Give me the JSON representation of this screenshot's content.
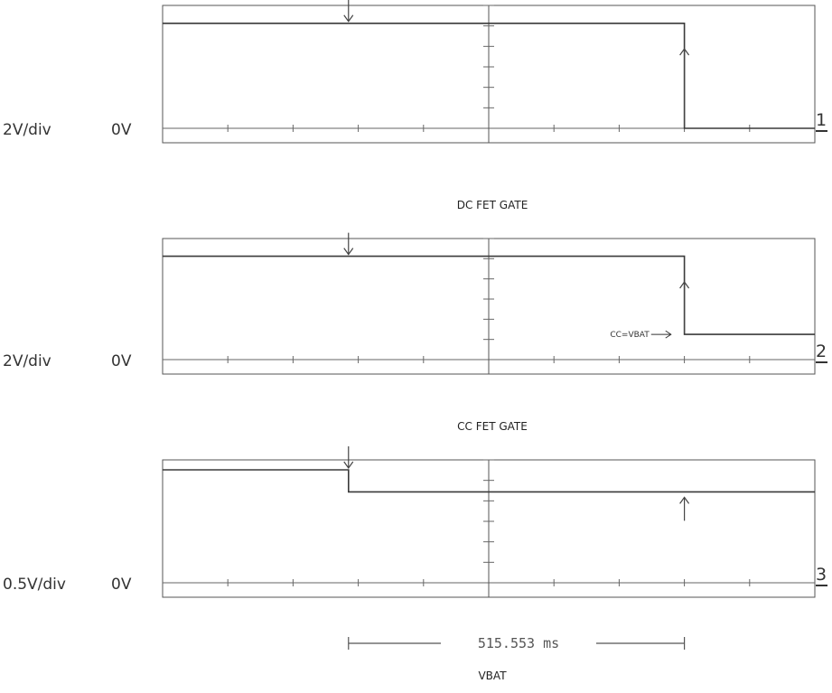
{
  "chart_data": [
    {
      "type": "line",
      "title": "DC FET GATE",
      "channel": "1",
      "scale_label": "2V/div",
      "offset_label": "0V",
      "x_unit": "div",
      "y_unit": "div",
      "xlim": [
        0,
        10
      ],
      "ylim": [
        0,
        8
      ],
      "grid": false,
      "series": [
        {
          "x": [
            0,
            8,
            8,
            10
          ],
          "y": [
            5.95,
            5.95,
            0,
            0
          ]
        }
      ],
      "markers": [
        {
          "x": 2.85,
          "direction": "down",
          "at": "trace"
        },
        {
          "x": 8,
          "direction": "up",
          "at": "trace"
        }
      ],
      "annotations": []
    },
    {
      "type": "line",
      "title": "CC FET GATE",
      "channel": "2",
      "scale_label": "2V/div",
      "offset_label": "0V",
      "x_unit": "div",
      "y_unit": "div",
      "xlim": [
        0,
        10
      ],
      "ylim": [
        0,
        8
      ],
      "grid": false,
      "series": [
        {
          "x": [
            0,
            8,
            8,
            10
          ],
          "y": [
            5.95,
            5.95,
            1.45,
            1.45
          ]
        }
      ],
      "markers": [
        {
          "x": 2.85,
          "direction": "down",
          "at": "trace"
        },
        {
          "x": 8,
          "direction": "up",
          "at": "trace"
        }
      ],
      "annotations": [
        {
          "text": "CC=VBAT",
          "x": 7.85,
          "y": 1.45
        }
      ]
    },
    {
      "type": "line",
      "title": "VBAT",
      "channel": "3",
      "scale_label": "0.5V/div",
      "offset_label": "0V",
      "x_unit": "div",
      "y_unit": "div",
      "xlim": [
        0,
        10
      ],
      "ylim": [
        0,
        8
      ],
      "grid": false,
      "series": [
        {
          "x": [
            0,
            2.85,
            2.85,
            10
          ],
          "y": [
            6.4,
            6.4,
            5.15,
            5.15
          ]
        }
      ],
      "markers": [
        {
          "x": 2.85,
          "direction": "down",
          "at": "trace"
        },
        {
          "x": 8,
          "direction": "up",
          "at": "below"
        }
      ],
      "annotations": []
    }
  ],
  "time_measurement": {
    "label": "515.553 ms",
    "x_start": 2.85,
    "x_end": 8
  }
}
